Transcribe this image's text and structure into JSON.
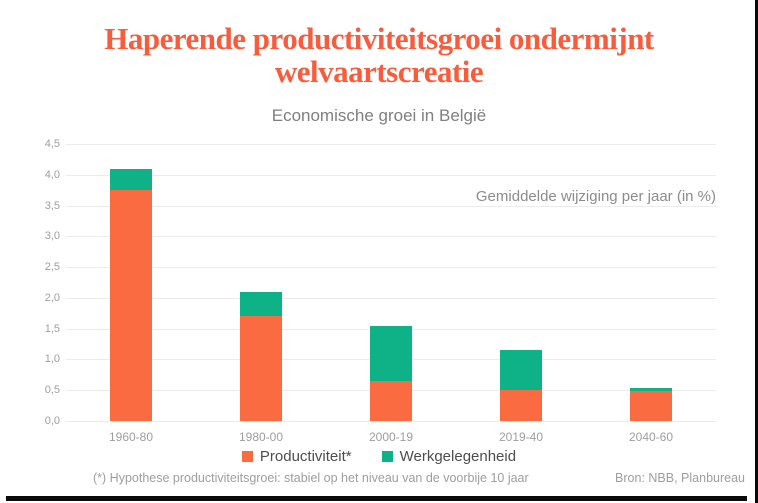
{
  "page": {
    "title_line1": "Haperende productiviteitsgroei ondermijnt",
    "title_line2": "welvaartscreatie",
    "subtitle": "Economische groei in België",
    "annotation": "Gemiddelde wijziging per jaar (in %)",
    "footnote": "(*) Hypothese productiviteitsgroei: stabiel op het niveau van de voorbije 10 jaar",
    "source": "Bron: NBB, Planbureau"
  },
  "colors": {
    "title": "#f95b3d",
    "productiviteit": "#fa6b42",
    "werkgelegenheid": "#0fb287",
    "gridline": "#ececec",
    "axis_text": "#9e9e9e",
    "legend_text": "#4d4d4d"
  },
  "chart_data": {
    "type": "bar",
    "stacked": true,
    "title": "Economische groei in België",
    "annotation": "Gemiddelde wijziging per jaar (in %)",
    "categories": [
      "1960-80",
      "1980-00",
      "2000-19",
      "2019-40",
      "2040-60"
    ],
    "series": [
      {
        "name": "Productiviteit*",
        "color": "#fa6b42",
        "values": [
          3.75,
          1.7,
          0.65,
          0.5,
          0.49
        ]
      },
      {
        "name": "Werkgelegenheid",
        "color": "#0fb287",
        "values": [
          0.35,
          0.4,
          0.9,
          0.65,
          0.04
        ]
      }
    ],
    "totals": [
      4.1,
      2.1,
      1.55,
      1.15,
      0.53
    ],
    "ylim": [
      0,
      4.5
    ],
    "ytick_step": 0.5,
    "ytick_labels": [
      "0,0",
      "0,5",
      "1,0",
      "1,5",
      "2,0",
      "2,5",
      "3,0",
      "3,5",
      "4,0",
      "4,5"
    ],
    "grid": true,
    "legend_position": "bottom",
    "footnote": "(*) Hypothese productiviteitsgroei: stabiel op het niveau van de voorbije 10 jaar",
    "source": "Bron: NBB, Planbureau"
  },
  "legend": {
    "items": [
      {
        "label": "Productiviteit*",
        "color": "#fa6b42"
      },
      {
        "label": "Werkgelegenheid",
        "color": "#0fb287"
      }
    ]
  }
}
